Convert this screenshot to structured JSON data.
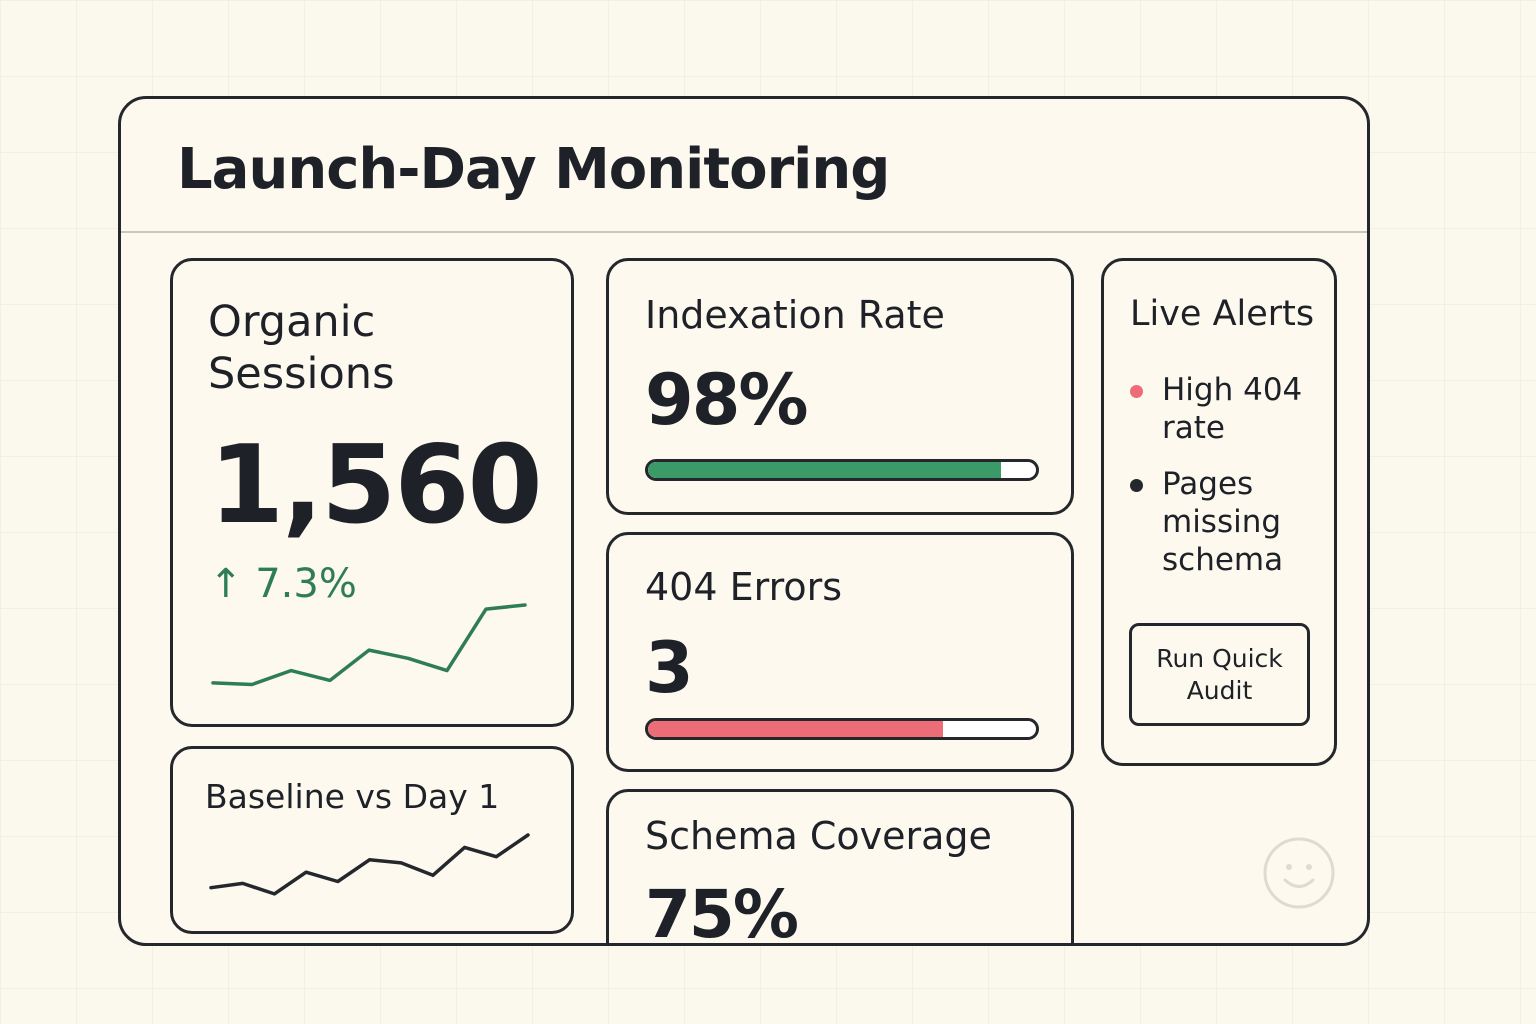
{
  "dashboard": {
    "title": "Launch-Day Monitoring"
  },
  "organic_sessions": {
    "title_line1": "Organic",
    "title_line2": "Sessions",
    "value": "1,560",
    "change": "↑ 7.3%",
    "change_color": "#2f7d58",
    "sparkline": [
      0.05,
      0.03,
      0.2,
      0.08,
      0.45,
      0.35,
      0.2,
      0.95,
      1.0
    ]
  },
  "baseline": {
    "title": "Baseline vs Day 1",
    "sparkline": [
      0.15,
      0.22,
      0.05,
      0.4,
      0.25,
      0.6,
      0.55,
      0.35,
      0.8,
      0.65,
      1.0
    ]
  },
  "indexation": {
    "title": "Indexation Rate",
    "value": "98%",
    "progress": 0.91,
    "bar_color": "#3a9a68"
  },
  "errors_404": {
    "title": "404 Errors",
    "value": "3",
    "progress": 0.76,
    "bar_color": "#ec6d78"
  },
  "schema": {
    "title": "Schema Coverage",
    "value": "75%"
  },
  "alerts": {
    "title": "Live Alerts",
    "items": [
      {
        "text": "High 404 rate",
        "color": "#ec6d78"
      },
      {
        "text": "Pages missing schema",
        "color": "#24272c"
      }
    ],
    "button_label": "Run Quick Audit"
  },
  "icons": {
    "corner_icon": "smiley-face-icon"
  }
}
